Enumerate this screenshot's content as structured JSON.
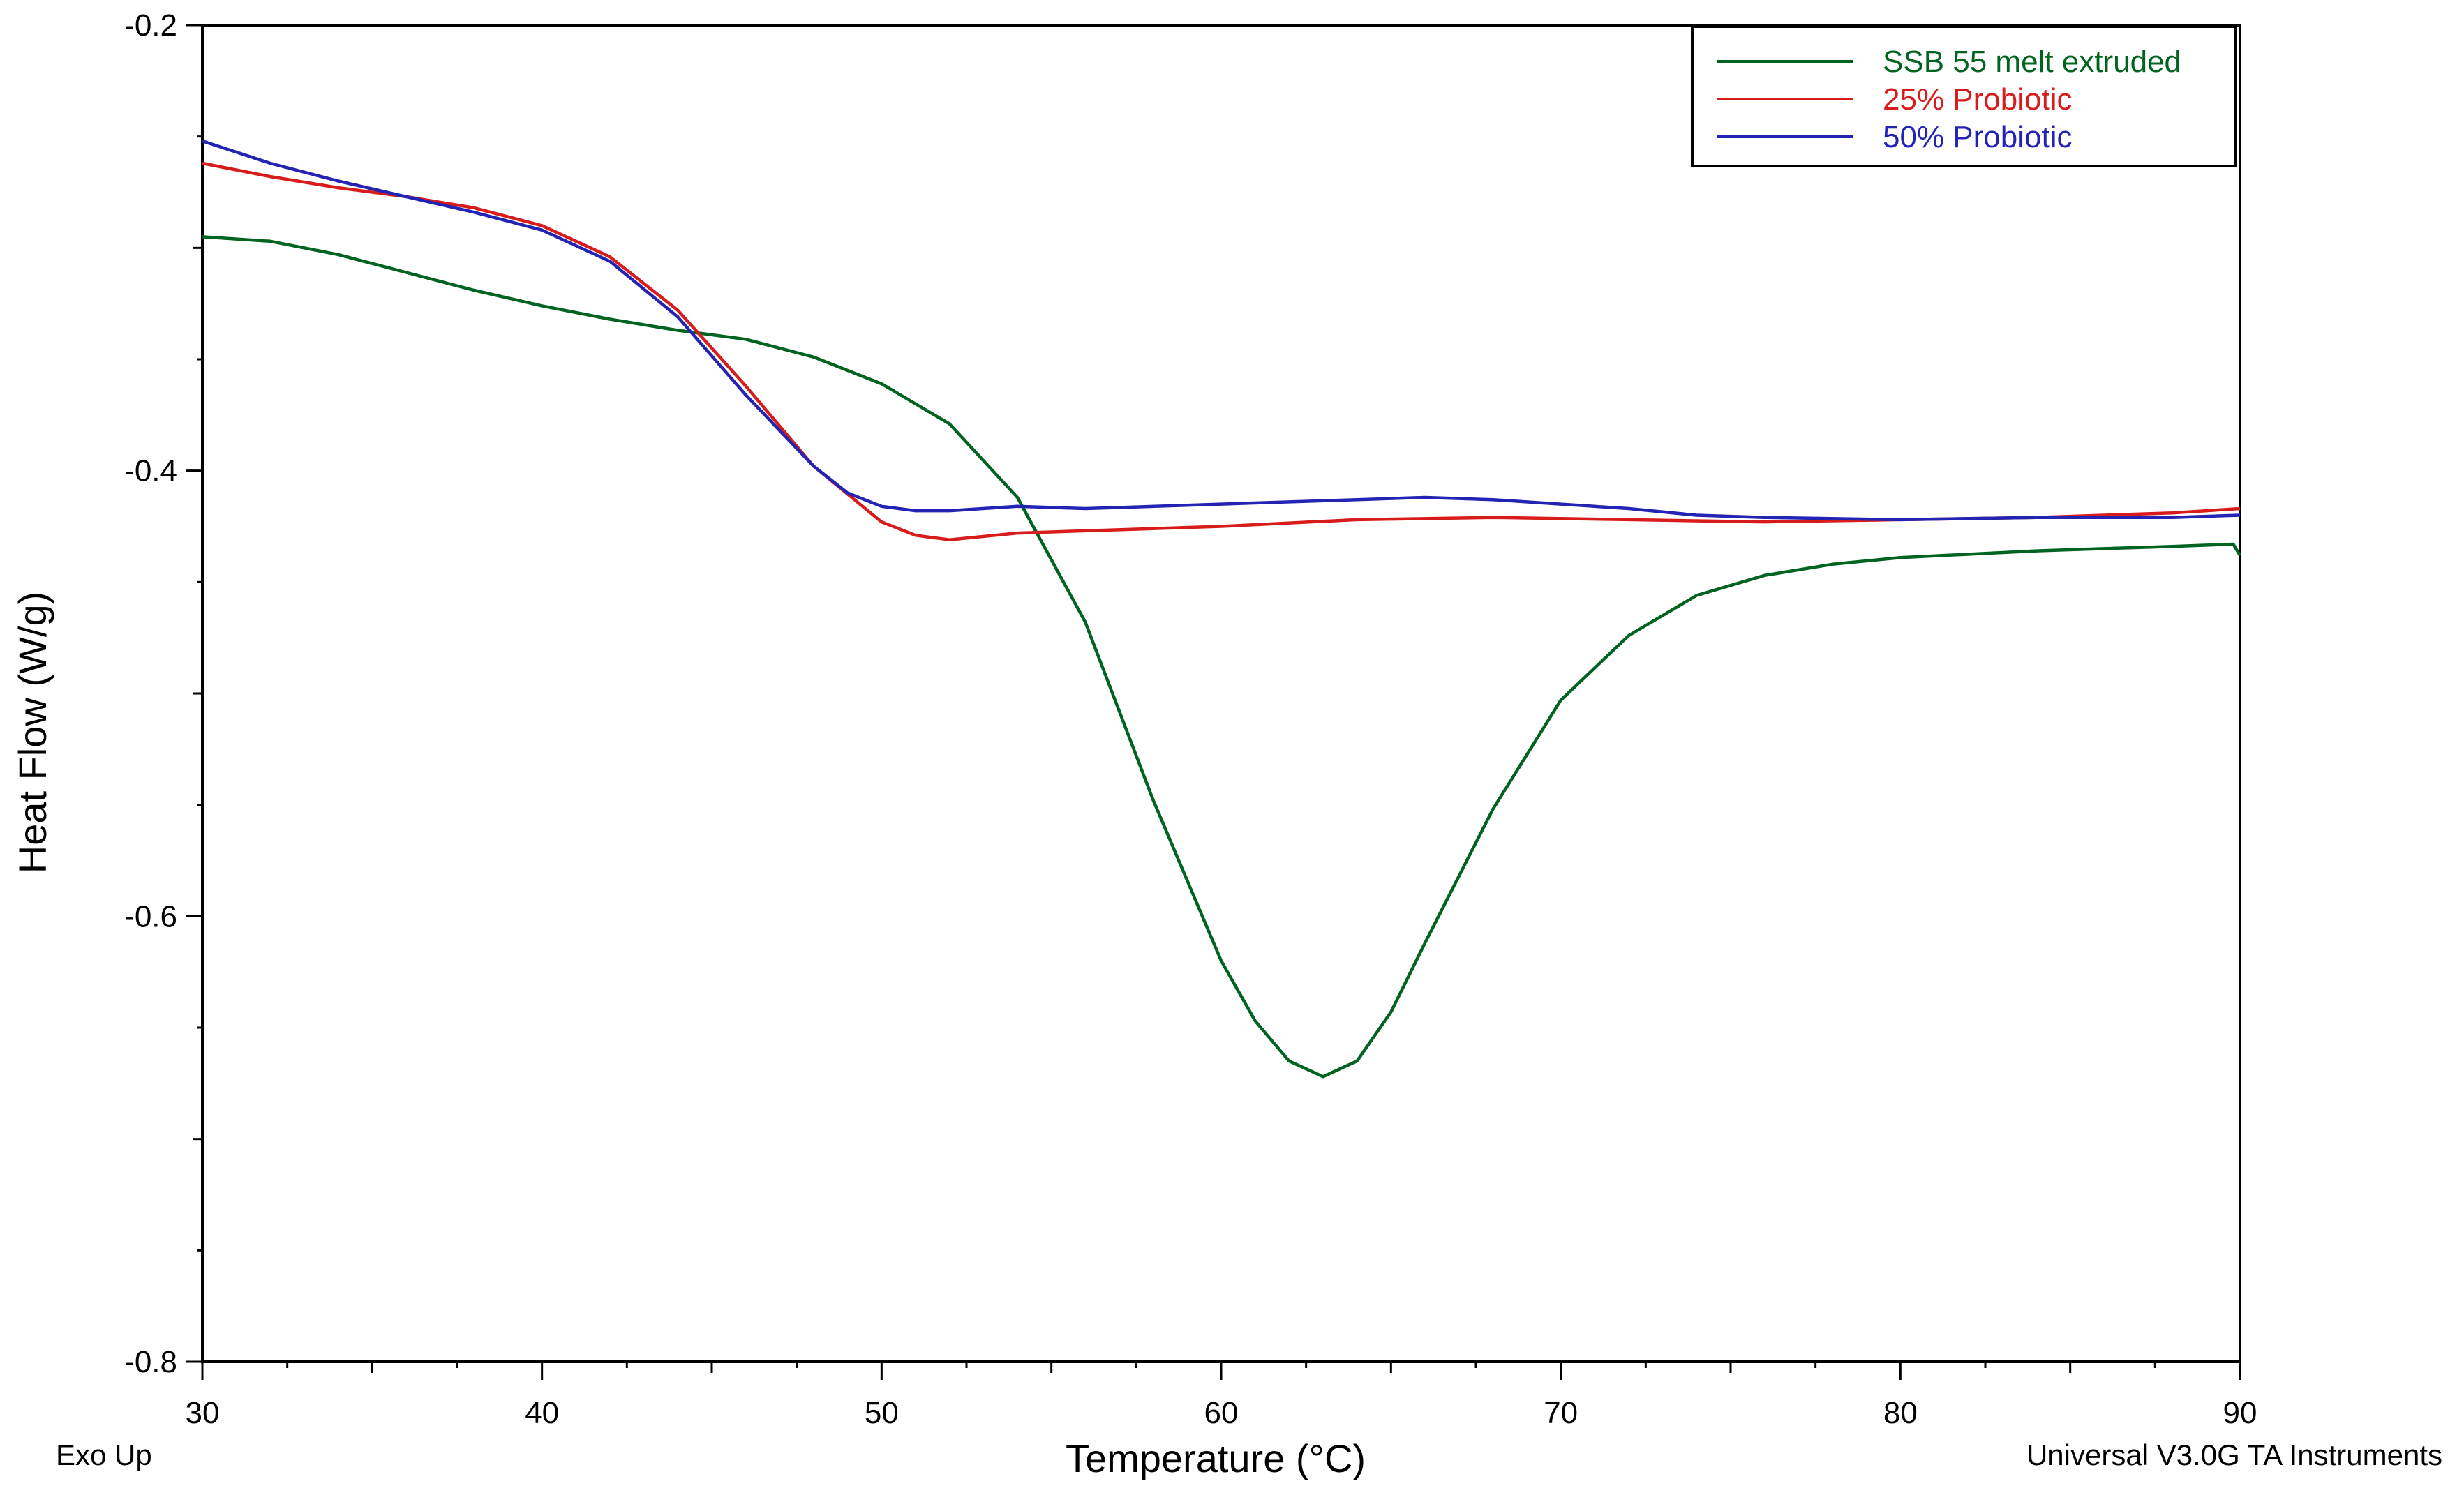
{
  "chart_data": {
    "type": "line",
    "xlabel": "Temperature (°C)",
    "ylabel": "Heat Flow (W/g)",
    "xlim": [
      30,
      90
    ],
    "ylim": [
      -0.8,
      -0.2
    ],
    "x_ticks": [
      30,
      40,
      50,
      60,
      70,
      80,
      90
    ],
    "y_ticks": [
      -0.8,
      -0.6,
      -0.4,
      -0.2
    ],
    "x_tick_labels": [
      "30",
      "40",
      "50",
      "60",
      "70",
      "80",
      "90"
    ],
    "y_tick_labels": [
      "-0.8",
      "-0.6",
      "-0.4",
      "-0.2"
    ],
    "legend_position": "top-right",
    "grid": false,
    "footer_left": "Exo Up",
    "footer_right": "Universal V3.0G TA Instruments",
    "series": [
      {
        "name": "SSB 55 melt extruded",
        "color": "#006420",
        "x": [
          30,
          32,
          34,
          36,
          38,
          40,
          42,
          44,
          46,
          48,
          50,
          52,
          54,
          56,
          58,
          60,
          61,
          62,
          63,
          64,
          65,
          66,
          68,
          70,
          72,
          74,
          76,
          78,
          80,
          84,
          88,
          89.8,
          90
        ],
        "y": [
          -0.295,
          -0.297,
          -0.303,
          -0.311,
          -0.319,
          -0.326,
          -0.332,
          -0.337,
          -0.341,
          -0.349,
          -0.361,
          -0.379,
          -0.412,
          -0.468,
          -0.548,
          -0.62,
          -0.647,
          -0.665,
          -0.672,
          -0.665,
          -0.643,
          -0.612,
          -0.552,
          -0.503,
          -0.474,
          -0.456,
          -0.447,
          -0.442,
          -0.439,
          -0.436,
          -0.434,
          -0.433,
          -0.438
        ]
      },
      {
        "name": "25% Probiotic",
        "color": "#d81c1c",
        "x": [
          30,
          32,
          34,
          36,
          38,
          40,
          42,
          44,
          46,
          48,
          50,
          51,
          52,
          54,
          56,
          60,
          64,
          68,
          72,
          76,
          80,
          84,
          88,
          90
        ],
        "y": [
          -0.262,
          -0.268,
          -0.273,
          -0.277,
          -0.282,
          -0.29,
          -0.304,
          -0.328,
          -0.362,
          -0.398,
          -0.423,
          -0.429,
          -0.431,
          -0.428,
          -0.427,
          -0.425,
          -0.422,
          -0.421,
          -0.422,
          -0.423,
          -0.422,
          -0.421,
          -0.419,
          -0.417
        ]
      },
      {
        "name": "50% Probiotic",
        "color": "#2323b4",
        "x": [
          30,
          32,
          34,
          36,
          38,
          40,
          42,
          44,
          46,
          48,
          49,
          50,
          51,
          52,
          54,
          56,
          60,
          64,
          66,
          68,
          70,
          72,
          74,
          76,
          80,
          84,
          88,
          90
        ],
        "y": [
          -0.252,
          -0.262,
          -0.27,
          -0.277,
          -0.284,
          -0.292,
          -0.306,
          -0.331,
          -0.366,
          -0.398,
          -0.41,
          -0.416,
          -0.418,
          -0.418,
          -0.416,
          -0.417,
          -0.415,
          -0.413,
          -0.412,
          -0.413,
          -0.415,
          -0.417,
          -0.42,
          -0.421,
          -0.422,
          -0.421,
          -0.421,
          -0.42
        ]
      }
    ]
  }
}
